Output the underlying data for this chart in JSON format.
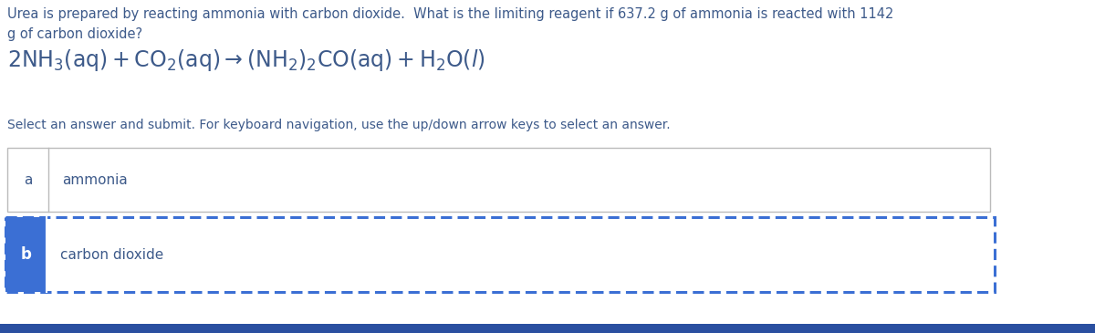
{
  "background_color": "#ffffff",
  "question_text_line1": "Urea is prepared by reacting ammonia with carbon dioxide.  What is the limiting reagent if 637.2 g of ammonia is reacted with 1142",
  "question_text_line2": "g of carbon dioxide?",
  "instruction_text": "Select an answer and submit. For keyboard navigation, use the up/down arrow keys to select an answer.",
  "option_a_label": "a",
  "option_a_text": "ammonia",
  "option_b_label": "b",
  "option_b_text": "carbon dioxide",
  "text_color": "#3d5a8a",
  "selected_border_color": "#3b6fd4",
  "unselected_border_color": "#bbbbbb",
  "selected_bg_color": "#3b6fd4",
  "unselected_bg_color": "#ffffff",
  "selected_text_color": "#ffffff",
  "dark_blue_bar_color": "#2a4fa0"
}
